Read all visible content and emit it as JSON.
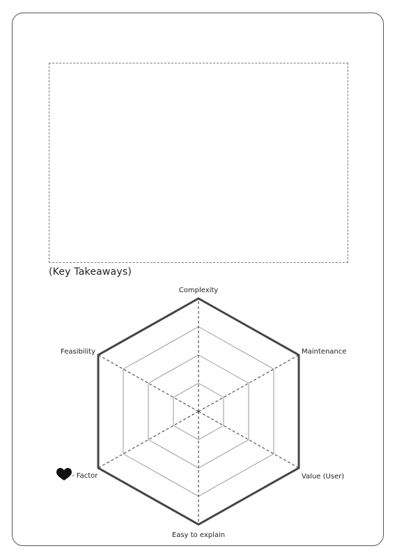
{
  "page": {
    "key_takeaways_label": "(Key Takeaways)"
  },
  "radar": {
    "axes": [
      "Complexity",
      "Maintenance",
      "Value (User)",
      "Easy to explain",
      "Factor",
      "Feasibility"
    ],
    "factor_prefix": "- ",
    "heart_icon": "heart-icon",
    "rings": 4
  },
  "colors": {
    "outline": "#444444",
    "grid": "#999999",
    "text": "#222222"
  }
}
